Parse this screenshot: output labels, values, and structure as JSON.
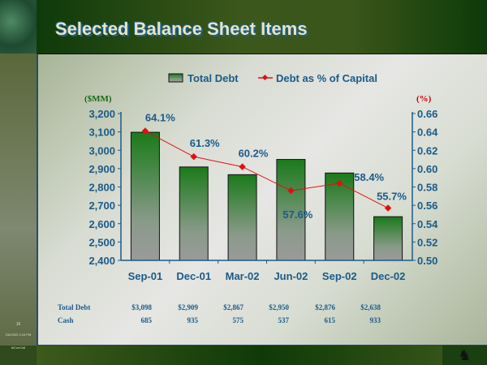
{
  "title": "Selected Balance Sheet Items",
  "slide_number": "16",
  "slide_timestamp": "2/6/2003 3:16 PM",
  "slide_footer_text": "tbConCall",
  "colors": {
    "bar_top": "#1a7a1a",
    "bar_bottom": "#9a9a9a",
    "line": "#e01010",
    "axis": "#1b5b88",
    "left_axis_title": "#1a6a1a",
    "right_axis_title": "#cc0000"
  },
  "chart_data": {
    "type": "bar+line",
    "categories": [
      "Sep-01",
      "Dec-01",
      "Mar-02",
      "Jun-02",
      "Sep-02",
      "Dec-02"
    ],
    "series": [
      {
        "name": "Total Debt",
        "type": "bar",
        "axis": "left",
        "values": [
          3098,
          2909,
          2867,
          2950,
          2876,
          2638
        ]
      },
      {
        "name": "Debt as % of Capital",
        "type": "line",
        "axis": "right",
        "values": [
          0.641,
          0.613,
          0.602,
          0.576,
          0.584,
          0.557
        ],
        "data_labels": [
          "64.1%",
          "61.3%",
          "60.2%",
          "57.6%",
          "58.4%",
          "55.7%"
        ]
      }
    ],
    "left_axis": {
      "title": "($MM)",
      "range": [
        2400,
        3200
      ],
      "ticks": [
        "2,400",
        "2,500",
        "2,600",
        "2,700",
        "2,800",
        "2,900",
        "3,000",
        "3,100",
        "3,200"
      ]
    },
    "right_axis": {
      "title": "(%)",
      "range": [
        0.5,
        0.66
      ],
      "ticks": [
        "0.50",
        "0.52",
        "0.54",
        "0.56",
        "0.58",
        "0.60",
        "0.62",
        "0.64",
        "0.66"
      ]
    },
    "legend_position": "top",
    "grid": false
  },
  "table": {
    "rows": [
      {
        "label": "Total Debt",
        "values": [
          "$3,098",
          "$2,909",
          "$2,867",
          "$2,950",
          "$2,876",
          "$2,638"
        ]
      },
      {
        "label": "Cash",
        "values": [
          "685",
          "935",
          "575",
          "537",
          "615",
          "933"
        ]
      }
    ]
  }
}
